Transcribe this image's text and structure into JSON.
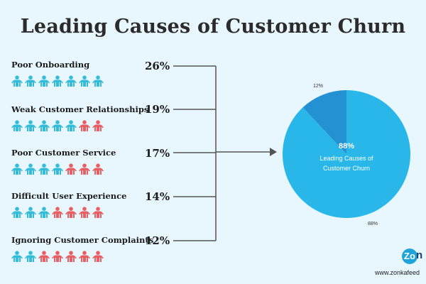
{
  "title": "Leading Causes of Customer Churn",
  "colors": {
    "blue_person": "#33bcd9",
    "red_person": "#e85e62",
    "line": "#555555",
    "pie_main": "#29b7ea",
    "pie_small": "#2391d2"
  },
  "causes": [
    {
      "label": "Poor Onboarding",
      "pct": "26%",
      "blue": 7,
      "red": 0
    },
    {
      "label": "Weak Customer Relationships",
      "pct": "19%",
      "blue": 5,
      "red": 2
    },
    {
      "label": "Poor Customer Service",
      "pct": "17%",
      "blue": 4,
      "red": 3
    },
    {
      "label": "Difficult User Experience",
      "pct": "14%",
      "blue": 3,
      "red": 4
    },
    {
      "label": "Ignoring Customer Complaints",
      "pct": "12%",
      "blue": 2,
      "red": 5
    }
  ],
  "chart_data": {
    "type": "pie",
    "title": "",
    "slices": [
      {
        "label": "Leading Causes of Customer Churn",
        "value": 88,
        "data_label": "88%"
      },
      {
        "label": "",
        "value": 12,
        "data_label": "12%"
      }
    ],
    "center_pct": "88%",
    "center_label": "Leading Causes of Customer Churn"
  },
  "brand": {
    "logo_letter": "Zo",
    "logo_tail": "n",
    "website": "www.zonkafeed"
  }
}
